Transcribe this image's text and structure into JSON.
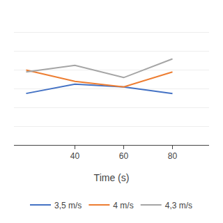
{
  "chart_data": {
    "type": "line",
    "x": [
      20,
      40,
      60,
      80
    ],
    "series": [
      {
        "name": "3,5 m/s",
        "color": "#4472c4",
        "values": [
          0.55,
          0.65,
          0.62,
          0.55
        ]
      },
      {
        "name": "4 m/s",
        "color": "#ed7d31",
        "values": [
          0.8,
          0.68,
          0.62,
          0.78
        ]
      },
      {
        "name": "4,3 m/s",
        "color": "#a5a5a5",
        "values": [
          0.78,
          0.85,
          0.72,
          0.92
        ]
      }
    ],
    "xlabel": "Time (s)",
    "xlim": [
      15,
      95
    ],
    "xticks": [
      40,
      60,
      80
    ],
    "ylim": [
      0.0,
      1.4
    ],
    "yticks": [
      0,
      0.2,
      0.4,
      0.6,
      0.8,
      1.0,
      1.2,
      1.4
    ],
    "grid": "y",
    "tick_labels": "x",
    "legend": "bottom"
  }
}
